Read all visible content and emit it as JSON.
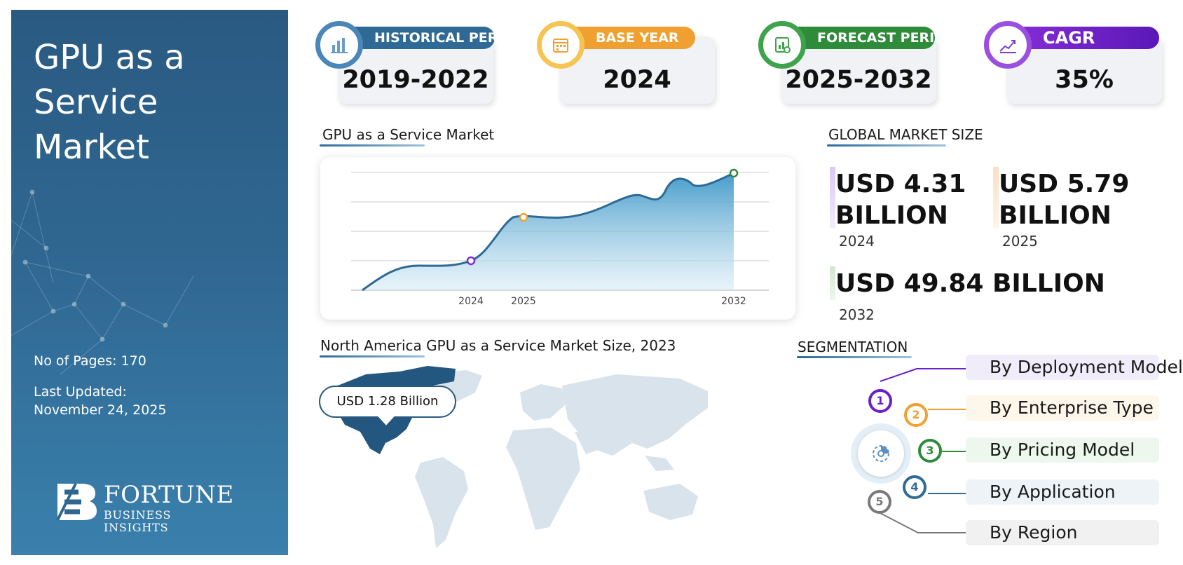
{
  "side": {
    "title": "GPU as a Service Market",
    "pages": "No of Pages: 170",
    "updated_label": "Last Updated:",
    "updated_date": "November 24, 2025",
    "logo_word": "FORTUNE",
    "logo_sub": "BUSINESS INSIGHTS"
  },
  "cards": [
    {
      "label": "HISTORICAL PERIOD",
      "value": "2019-2022",
      "color": "#2f6a96",
      "icon": "bar-chart-icon"
    },
    {
      "label": "BASE YEAR",
      "value": "2024",
      "color": "#f0a030",
      "icon": "calendar-icon"
    },
    {
      "label": "FORECAST PERIOD",
      "value": "2025-2032",
      "color": "#2e8b3a",
      "icon": "forecast-chart-icon"
    },
    {
      "label": "CAGR",
      "value": "35%",
      "color": "#6a1fc8",
      "icon": "growth-chart-icon"
    }
  ],
  "chart": {
    "heading": "GPU as a Service Market",
    "tick_labels": [
      "2024",
      "2025",
      "2032"
    ]
  },
  "chart_data": {
    "type": "area",
    "title": "GPU as a Service Market",
    "xlabel": "",
    "ylabel": "",
    "x": [
      "2024",
      "2025",
      "2032"
    ],
    "highlight_points": [
      {
        "x": "2024",
        "color": "#7b2fd0"
      },
      {
        "x": "2025",
        "color": "#f0a030"
      },
      {
        "x": "2032",
        "color": "#2e8b3a"
      }
    ],
    "grid": true,
    "legend": "none"
  },
  "market": {
    "heading": "GLOBAL MARKET SIZE",
    "items": [
      {
        "line1": "USD 4.31",
        "line2": "BILLION",
        "year": "2024",
        "color": "#c9b6ec"
      },
      {
        "line1": "USD 5.79",
        "line2": "BILLION",
        "year": "2025",
        "color": "#fbd9b3"
      },
      {
        "line1": "USD 49.84 BILLION",
        "line2": "",
        "year": "2032",
        "color": "#c9e6c8"
      }
    ]
  },
  "map": {
    "heading": "North America GPU as a Service Market Size, 2023",
    "callout": "USD 1.28 Billion"
  },
  "segmentation": {
    "heading": "SEGMENTATION",
    "items": [
      {
        "num": "1",
        "label": "By Deployment Model",
        "color": "#6a1fc8",
        "bg": "#f1ecfa"
      },
      {
        "num": "2",
        "label": "By Enterprise Type",
        "color": "#f0a030",
        "bg": "#fdf6ea"
      },
      {
        "num": "3",
        "label": "By Pricing Model",
        "color": "#2e8b3a",
        "bg": "#eef7ee"
      },
      {
        "num": "4",
        "label": "By Application",
        "color": "#2f6a96",
        "bg": "#eef3f8"
      },
      {
        "num": "5",
        "label": "By Region",
        "color": "#7a7a7a",
        "bg": "#f1f1f1"
      }
    ]
  }
}
